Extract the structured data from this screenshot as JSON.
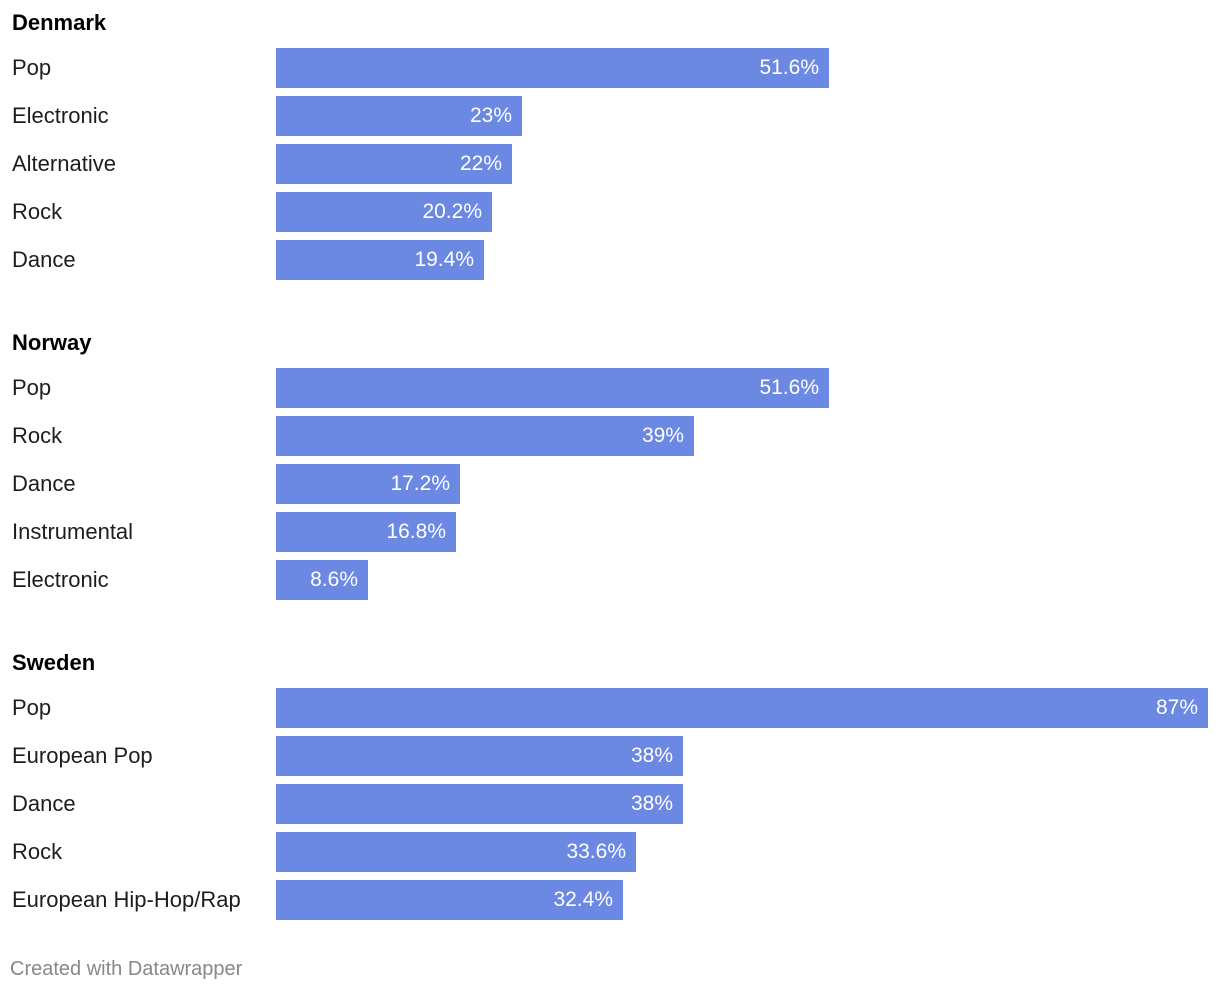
{
  "colors": {
    "bar": "#6b88e2",
    "value_text": "#ffffff",
    "label_text": "#1d1d1d",
    "credit_text": "#888888"
  },
  "chart_data": {
    "type": "bar",
    "orientation": "horizontal",
    "value_format": "percent",
    "xlim": [
      0,
      87
    ],
    "grid": false,
    "groups": [
      {
        "name": "Denmark",
        "categories": [
          "Pop",
          "Electronic",
          "Alternative",
          "Rock",
          "Dance"
        ],
        "values": [
          51.6,
          23,
          22,
          20.2,
          19.4
        ],
        "value_labels": [
          "51.6%",
          "23%",
          "22%",
          "20.2%",
          "19.4%"
        ]
      },
      {
        "name": "Norway",
        "categories": [
          "Pop",
          "Rock",
          "Dance",
          "Instrumental",
          "Electronic"
        ],
        "values": [
          51.6,
          39,
          17.2,
          16.8,
          8.6
        ],
        "value_labels": [
          "51.6%",
          "39%",
          "17.2%",
          "16.8%",
          "8.6%"
        ]
      },
      {
        "name": "Sweden",
        "categories": [
          "Pop",
          "European Pop",
          "Dance",
          "Rock",
          "European Hip-Hop/Rap"
        ],
        "values": [
          87,
          38,
          38,
          33.6,
          32.4
        ],
        "value_labels": [
          "87%",
          "38%",
          "38%",
          "33.6%",
          "32.4%"
        ]
      }
    ]
  },
  "footer": {
    "credit": "Created with Datawrapper"
  }
}
